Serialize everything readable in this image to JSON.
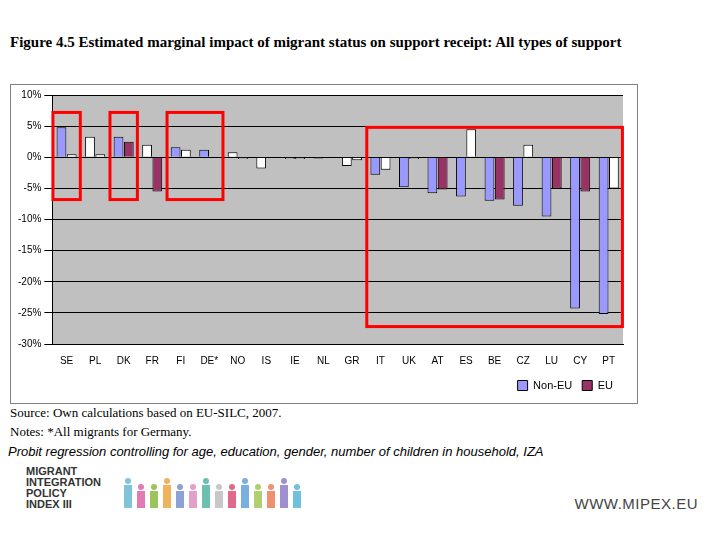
{
  "chart_data": {
    "type": "bar",
    "title": "Figure 4.5 Estimated marginal impact of migrant status on support receipt: All types of support",
    "categories": [
      "SE",
      "PL",
      "DK",
      "FR",
      "FI",
      "DE*",
      "NO",
      "IS",
      "IE",
      "NL",
      "GR",
      "IT",
      "UK",
      "AT",
      "ES",
      "BE",
      "CZ",
      "LU",
      "CY",
      "PT"
    ],
    "series": [
      {
        "name": "Non-EU",
        "color": "#9999ff",
        "values": [
          4.8,
          3.3,
          3.3,
          2.0,
          1.6,
          1.2,
          0.8,
          -1.8,
          -0.3,
          -0.2,
          -1.4,
          -2.8,
          -4.8,
          -5.8,
          -6.3,
          -7.0,
          -7.8,
          -9.5,
          -24.3,
          -25.2
        ],
        "colors": [
          "#9999ff",
          "#ffffff",
          "#9999ff",
          "#ffffff",
          "#9999ff",
          "#9999ff",
          "#ffffff",
          "#ffffff",
          "#ffffff",
          "#ffffff",
          "#ffffff",
          "#9999ff",
          "#9999ff",
          "#9999ff",
          "#9999ff",
          "#9999ff",
          "#9999ff",
          "#9999ff",
          "#9999ff",
          "#9999ff"
        ]
      },
      {
        "name": "EU",
        "color": "#993366",
        "values": [
          0.5,
          0.5,
          2.5,
          -5.5,
          1.2,
          null,
          -0.3,
          0.1,
          -0.3,
          -0.1,
          -0.5,
          -2.0,
          -0.3,
          -5.2,
          4.5,
          -6.8,
          2.0,
          -5.0,
          -5.5,
          -5.0
        ],
        "colors": [
          "#ffffff",
          "#ffffff",
          "#993366",
          "#993366",
          "#ffffff",
          "#ffffff",
          "#ffffff",
          "#ffffff",
          "#ffffff",
          "#ffffff",
          "#ffffff",
          "#ffffff",
          "#ffffff",
          "#993366",
          "#ffffff",
          "#993366",
          "#ffffff",
          "#993366",
          "#993366",
          "#ffffff"
        ]
      }
    ],
    "ylim": [
      -30,
      10
    ],
    "yticks": [
      {
        "value": -30,
        "label": "-30%"
      },
      {
        "value": -25,
        "label": "-25%"
      },
      {
        "value": -20,
        "label": "-20%"
      },
      {
        "value": -15,
        "label": "-15%"
      },
      {
        "value": -10,
        "label": "-10%"
      },
      {
        "value": -5,
        "label": "-5%"
      },
      {
        "value": 0,
        "label": "0%"
      },
      {
        "value": 5,
        "label": "5%"
      },
      {
        "value": 10,
        "label": "10%"
      }
    ],
    "grid": true,
    "legend": "bottom"
  },
  "slide": {
    "source": "Source: Own calculations based on EU-SILC, 2007.",
    "notes": "Notes: *All migrants for Germany.",
    "method": "Probit regression controlling for age, education, gender, number of children in household, IZA",
    "logo": [
      "MIGRANT",
      "INTEGRATION",
      "POLICY",
      "INDEX III"
    ],
    "url": "WWW.MIPEX.EU"
  }
}
